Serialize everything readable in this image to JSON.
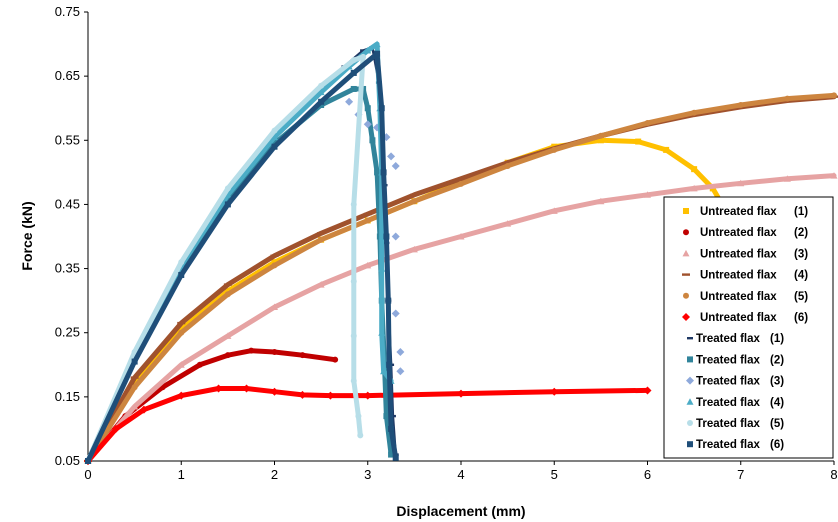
{
  "chart_data": {
    "type": "scatter",
    "xlabel": "Displacement (mm)",
    "ylabel": "Force (kN)",
    "xlim": [
      0,
      8
    ],
    "ylim": [
      0.05,
      0.75
    ],
    "xticks": [
      "0",
      "1",
      "2",
      "3",
      "4",
      "5",
      "6",
      "7",
      "8"
    ],
    "yticks": [
      "0.05",
      "0.15",
      "0.25",
      "0.35",
      "0.45",
      "0.55",
      "0.65",
      "0.75"
    ],
    "grid": false,
    "legend_position": "right",
    "series": [
      {
        "name": "Untreated flax",
        "num": "(1)",
        "color": "#FFC000",
        "marker": "square",
        "points": [
          [
            0,
            0.05
          ],
          [
            0.5,
            0.17
          ],
          [
            1,
            0.255
          ],
          [
            1.5,
            0.315
          ],
          [
            2,
            0.36
          ],
          [
            2.5,
            0.395
          ],
          [
            3,
            0.425
          ],
          [
            3.5,
            0.455
          ],
          [
            4,
            0.485
          ],
          [
            4.5,
            0.515
          ],
          [
            5,
            0.54
          ],
          [
            5.5,
            0.55
          ],
          [
            5.9,
            0.548
          ],
          [
            6.2,
            0.535
          ],
          [
            6.5,
            0.505
          ],
          [
            6.7,
            0.475
          ],
          [
            6.8,
            0.45
          ]
        ]
      },
      {
        "name": "Untreated flax",
        "num": "(2)",
        "color": "#C00000",
        "marker": "circle",
        "points": [
          [
            0,
            0.05
          ],
          [
            0.4,
            0.12
          ],
          [
            0.8,
            0.165
          ],
          [
            1.2,
            0.2
          ],
          [
            1.5,
            0.215
          ],
          [
            1.75,
            0.222
          ],
          [
            2,
            0.22
          ],
          [
            2.3,
            0.215
          ],
          [
            2.65,
            0.208
          ]
        ]
      },
      {
        "name": "Untreated flax",
        "num": "(3)",
        "color": "#E6A3A3",
        "marker": "triangle",
        "points": [
          [
            0,
            0.05
          ],
          [
            0.5,
            0.135
          ],
          [
            1,
            0.2
          ],
          [
            1.5,
            0.245
          ],
          [
            2,
            0.29
          ],
          [
            2.5,
            0.325
          ],
          [
            3,
            0.355
          ],
          [
            3.5,
            0.38
          ],
          [
            4,
            0.4
          ],
          [
            4.5,
            0.42
          ],
          [
            5,
            0.44
          ],
          [
            5.5,
            0.455
          ],
          [
            6,
            0.465
          ],
          [
            6.5,
            0.475
          ],
          [
            7,
            0.483
          ],
          [
            7.5,
            0.49
          ],
          [
            8,
            0.495
          ]
        ]
      },
      {
        "name": "Untreated flax",
        "num": "(4)",
        "color": "#A0522D",
        "marker": "line",
        "points": [
          [
            0,
            0.05
          ],
          [
            0.5,
            0.18
          ],
          [
            1,
            0.265
          ],
          [
            1.5,
            0.325
          ],
          [
            2,
            0.37
          ],
          [
            2.5,
            0.405
          ],
          [
            3,
            0.435
          ],
          [
            3.5,
            0.465
          ],
          [
            4,
            0.49
          ],
          [
            4.5,
            0.515
          ],
          [
            5,
            0.537
          ],
          [
            5.5,
            0.557
          ],
          [
            6,
            0.575
          ],
          [
            6.5,
            0.59
          ],
          [
            7,
            0.602
          ],
          [
            7.5,
            0.612
          ],
          [
            8,
            0.618
          ]
        ]
      },
      {
        "name": "Untreated flax",
        "num": "(5)",
        "color": "#CD853F",
        "marker": "circle",
        "points": [
          [
            0,
            0.05
          ],
          [
            0.5,
            0.165
          ],
          [
            1,
            0.25
          ],
          [
            1.5,
            0.31
          ],
          [
            2,
            0.355
          ],
          [
            2.5,
            0.395
          ],
          [
            3,
            0.425
          ],
          [
            3.5,
            0.455
          ],
          [
            4,
            0.482
          ],
          [
            4.5,
            0.51
          ],
          [
            5,
            0.535
          ],
          [
            5.5,
            0.557
          ],
          [
            6,
            0.577
          ],
          [
            6.5,
            0.593
          ],
          [
            7,
            0.605
          ],
          [
            7.5,
            0.615
          ],
          [
            8,
            0.62
          ]
        ]
      },
      {
        "name": "Untreated flax",
        "num": "(6)",
        "color": "#FF0000",
        "marker": "diamond",
        "points": [
          [
            0,
            0.05
          ],
          [
            0.3,
            0.1
          ],
          [
            0.6,
            0.13
          ],
          [
            1,
            0.152
          ],
          [
            1.4,
            0.163
          ],
          [
            1.7,
            0.163
          ],
          [
            2,
            0.158
          ],
          [
            2.3,
            0.153
          ],
          [
            2.6,
            0.152
          ],
          [
            3,
            0.152
          ],
          [
            4,
            0.155
          ],
          [
            5,
            0.158
          ],
          [
            6,
            0.16
          ]
        ]
      },
      {
        "name": "Treated flax",
        "num": "(1)",
        "color": "#1F3864",
        "marker": "dash",
        "points": [
          [
            0,
            0.05
          ],
          [
            0.5,
            0.215
          ],
          [
            1,
            0.355
          ],
          [
            1.5,
            0.465
          ],
          [
            2,
            0.555
          ],
          [
            2.5,
            0.63
          ],
          [
            2.75,
            0.665
          ],
          [
            2.95,
            0.69
          ],
          [
            3.05,
            0.695
          ],
          [
            3.12,
            0.64
          ],
          [
            3.15,
            0.56
          ],
          [
            3.18,
            0.48
          ],
          [
            3.2,
            0.39
          ],
          [
            3.22,
            0.3
          ],
          [
            3.25,
            0.2
          ],
          [
            3.27,
            0.12
          ],
          [
            3.3,
            0.06
          ]
        ]
      },
      {
        "name": "Treated flax",
        "num": "(2)",
        "color": "#31849B",
        "marker": "square",
        "points": [
          [
            0,
            0.05
          ],
          [
            0.5,
            0.21
          ],
          [
            1,
            0.345
          ],
          [
            1.5,
            0.455
          ],
          [
            2,
            0.545
          ],
          [
            2.5,
            0.605
          ],
          [
            2.85,
            0.63
          ],
          [
            2.95,
            0.63
          ],
          [
            3,
            0.6
          ],
          [
            3.05,
            0.55
          ],
          [
            3.1,
            0.5
          ],
          [
            3.13,
            0.4
          ],
          [
            3.15,
            0.3
          ],
          [
            3.18,
            0.2
          ],
          [
            3.2,
            0.12
          ],
          [
            3.25,
            0.06
          ]
        ]
      },
      {
        "name": "Treated flax",
        "num": "(3)",
        "color": "#8EA9DB",
        "marker": "diamond",
        "points": [
          [
            2.8,
            0.61
          ],
          [
            2.9,
            0.59
          ],
          [
            3.0,
            0.575
          ],
          [
            3.1,
            0.57
          ],
          [
            3.2,
            0.555
          ],
          [
            3.25,
            0.525
          ],
          [
            3.3,
            0.51
          ],
          [
            3.3,
            0.4
          ],
          [
            3.3,
            0.28
          ],
          [
            3.35,
            0.22
          ],
          [
            3.35,
            0.19
          ]
        ]
      },
      {
        "name": "Treated flax",
        "num": "(4)",
        "color": "#4BACC6",
        "marker": "triangle",
        "points": [
          [
            0,
            0.05
          ],
          [
            0.5,
            0.215
          ],
          [
            1,
            0.355
          ],
          [
            1.5,
            0.465
          ],
          [
            2,
            0.555
          ],
          [
            2.5,
            0.625
          ],
          [
            2.8,
            0.665
          ],
          [
            3,
            0.69
          ],
          [
            3.1,
            0.7
          ],
          [
            3.13,
            0.6
          ],
          [
            3.15,
            0.5
          ],
          [
            3.15,
            0.35
          ],
          [
            3.15,
            0.25
          ],
          [
            3.17,
            0.19
          ],
          [
            3.25,
            0.175
          ]
        ]
      },
      {
        "name": "Treated flax",
        "num": "(5)",
        "color": "#B7DEE8",
        "marker": "circle",
        "points": [
          [
            0,
            0.05
          ],
          [
            0.5,
            0.22
          ],
          [
            1,
            0.36
          ],
          [
            1.5,
            0.475
          ],
          [
            2,
            0.565
          ],
          [
            2.5,
            0.635
          ],
          [
            2.85,
            0.675
          ],
          [
            2.95,
            0.68
          ],
          [
            2.85,
            0.45
          ],
          [
            2.85,
            0.33
          ],
          [
            2.85,
            0.245
          ],
          [
            2.85,
            0.175
          ],
          [
            2.9,
            0.12
          ],
          [
            2.92,
            0.09
          ]
        ]
      },
      {
        "name": "Treated flax",
        "num": "(6)",
        "color": "#1F4E79",
        "marker": "square",
        "points": [
          [
            0,
            0.05
          ],
          [
            0.5,
            0.205
          ],
          [
            1,
            0.34
          ],
          [
            1.5,
            0.45
          ],
          [
            2,
            0.54
          ],
          [
            2.5,
            0.61
          ],
          [
            2.85,
            0.655
          ],
          [
            3.1,
            0.685
          ],
          [
            3.15,
            0.6
          ],
          [
            3.17,
            0.5
          ],
          [
            3.2,
            0.4
          ],
          [
            3.22,
            0.3
          ],
          [
            3.23,
            0.2
          ],
          [
            3.25,
            0.1
          ],
          [
            3.3,
            0.055
          ]
        ]
      }
    ]
  }
}
